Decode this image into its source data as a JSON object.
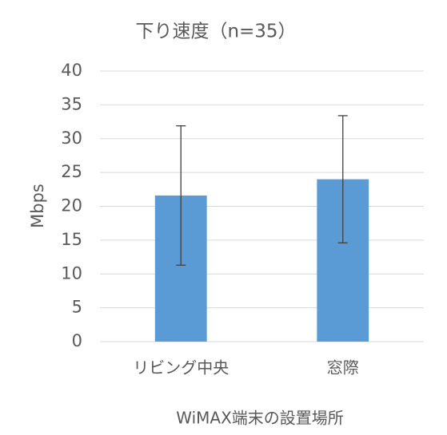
{
  "chart_data": {
    "type": "bar",
    "title": "下り速度（n=35）",
    "x_label": "WiMAX端末の設置場所",
    "y_label": "Mbps",
    "categories": [
      "リビング中央",
      "窓際"
    ],
    "values": [
      21.6,
      24.0
    ],
    "errors": [
      10.3,
      9.4
    ],
    "color": "#5b9bd5",
    "ylim": [
      0,
      40
    ],
    "yticks": [
      0,
      5,
      10,
      15,
      20,
      25,
      30,
      35,
      40
    ],
    "grid": true
  }
}
